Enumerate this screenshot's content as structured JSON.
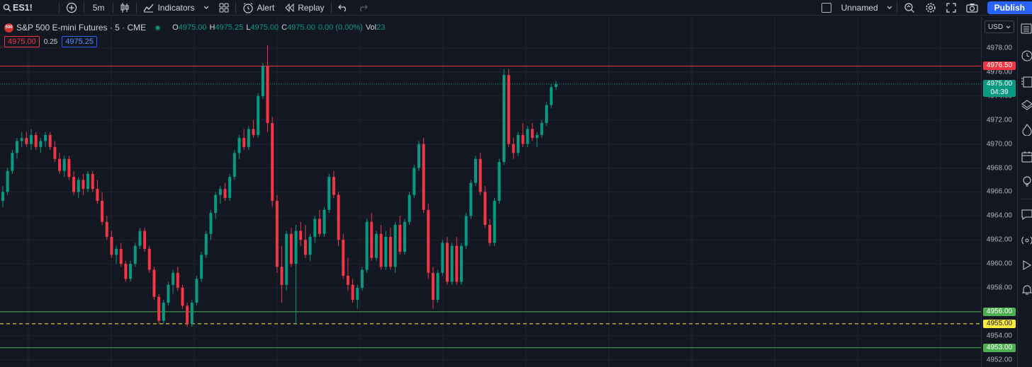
{
  "toolbar": {
    "symbol": "ES1!",
    "interval": "5m",
    "indicators_label": "Indicators",
    "alert_label": "Alert",
    "replay_label": "Replay",
    "layout_name": "Unnamed",
    "publish_label": "Publish"
  },
  "legend": {
    "badge": "500",
    "title": "S&P 500 E-mini Futures · 5 · CME",
    "open_key": "O",
    "open": "4975.00",
    "high_key": "H",
    "high": "4975.25",
    "low_key": "L",
    "low": "4975.00",
    "close_key": "C",
    "close": "4975.00",
    "change": "0.00 (0.00%)",
    "vol_key": "Vol",
    "vol": "23"
  },
  "quote": {
    "bid": "4975.00",
    "spread": "0.25",
    "ask": "4975.25"
  },
  "price_axis": {
    "currency": "USD",
    "ticks": [
      "4978.00",
      "4976.00",
      "4974.00",
      "4972.00",
      "4970.00",
      "4968.00",
      "4966.00",
      "4964.00",
      "4962.00",
      "4960.00",
      "4958.00",
      "4956.00",
      "4954.00",
      "4952.00"
    ],
    "labels": {
      "resistance": "4976.50",
      "last_price": "4975.00",
      "countdown": "04:39",
      "support_upper": "4956.00",
      "support_mid": "4955.00",
      "support_lower": "4953.00"
    }
  },
  "colors": {
    "up": "#089981",
    "down": "#f23645",
    "resistance": "#f23645",
    "support": "#4caf50",
    "midline": "#ffeb3b",
    "background": "#131722",
    "grid": "#1f2330"
  },
  "icons": {
    "toolbar": [
      "search-icon",
      "add-symbol-icon",
      "candles-icon",
      "indicators-icon",
      "templates-icon",
      "alert-icon",
      "replay-icon",
      "undo-icon",
      "redo-icon",
      "chevron-down-icon",
      "quick-search-icon",
      "settings-icon",
      "fullscreen-icon",
      "camera-icon"
    ],
    "sidebar": [
      "watchlist-icon",
      "alerts-clock-icon",
      "data-window-icon",
      "layers-icon",
      "hotlist-icon",
      "calendar-icon",
      "ideas-icon",
      "chat-icon",
      "streams-icon",
      "play-icon",
      "notifications-icon"
    ]
  },
  "chart_data": {
    "type": "candlestick",
    "ylim": [
      4951.5,
      4979.0
    ],
    "horizontal_lines": [
      {
        "price": 4976.5,
        "color": "#f23645",
        "style": "solid"
      },
      {
        "price": 4975.0,
        "color": "#089981",
        "style": "dotted"
      },
      {
        "price": 4956.0,
        "color": "#4caf50",
        "style": "solid"
      },
      {
        "price": 4955.0,
        "color": "#ffeb3b",
        "style": "dashed"
      },
      {
        "price": 4953.0,
        "color": "#4caf50",
        "style": "solid"
      }
    ],
    "candles": [
      [
        4965.25,
        4966.5,
        4964.75,
        4966.0
      ],
      [
        4966.0,
        4968.0,
        4965.75,
        4967.75
      ],
      [
        4967.75,
        4969.5,
        4967.5,
        4969.25
      ],
      [
        4969.25,
        4970.5,
        4968.75,
        4970.25
      ],
      [
        4970.25,
        4971.0,
        4969.75,
        4970.5
      ],
      [
        4970.5,
        4971.0,
        4969.75,
        4970.0
      ],
      [
        4970.0,
        4971.25,
        4969.5,
        4970.75
      ],
      [
        4970.75,
        4971.0,
        4969.5,
        4969.75
      ],
      [
        4969.75,
        4970.5,
        4969.25,
        4970.25
      ],
      [
        4970.25,
        4971.0,
        4969.75,
        4970.75
      ],
      [
        4970.75,
        4971.0,
        4969.5,
        4969.75
      ],
      [
        4969.75,
        4970.25,
        4968.5,
        4968.75
      ],
      [
        4968.75,
        4969.25,
        4967.5,
        4967.75
      ],
      [
        4967.75,
        4969.0,
        4967.25,
        4968.75
      ],
      [
        4968.75,
        4969.0,
        4967.0,
        4967.25
      ],
      [
        4967.25,
        4967.75,
        4965.75,
        4966.0
      ],
      [
        4966.0,
        4967.25,
        4965.5,
        4967.0
      ],
      [
        4967.0,
        4967.5,
        4965.75,
        4966.25
      ],
      [
        4966.25,
        4967.75,
        4966.0,
        4967.5
      ],
      [
        4967.5,
        4967.75,
        4966.0,
        4966.25
      ],
      [
        4966.25,
        4967.0,
        4965.0,
        4965.25
      ],
      [
        4965.25,
        4966.0,
        4963.25,
        4963.5
      ],
      [
        4963.5,
        4964.0,
        4962.0,
        4962.25
      ],
      [
        4962.25,
        4962.75,
        4960.5,
        4960.75
      ],
      [
        4960.75,
        4961.5,
        4960.0,
        4961.25
      ],
      [
        4961.25,
        4961.75,
        4959.75,
        4960.0
      ],
      [
        4960.0,
        4960.25,
        4958.5,
        4958.75
      ],
      [
        4958.75,
        4960.25,
        4958.5,
        4960.0
      ],
      [
        4960.0,
        4961.75,
        4959.75,
        4961.5
      ],
      [
        4961.5,
        4963.0,
        4961.25,
        4962.75
      ],
      [
        4962.75,
        4963.0,
        4961.0,
        4961.25
      ],
      [
        4961.25,
        4961.5,
        4959.25,
        4959.5
      ],
      [
        4959.5,
        4959.75,
        4957.0,
        4957.25
      ],
      [
        4957.25,
        4957.5,
        4955.0,
        4955.25
      ],
      [
        4955.25,
        4957.0,
        4955.0,
        4956.75
      ],
      [
        4956.75,
        4958.5,
        4956.5,
        4958.25
      ],
      [
        4958.25,
        4959.5,
        4957.5,
        4959.25
      ],
      [
        4959.25,
        4959.75,
        4957.75,
        4958.0
      ],
      [
        4958.0,
        4958.25,
        4956.25,
        4956.5
      ],
      [
        4956.5,
        4956.75,
        4954.75,
        4955.0
      ],
      [
        4955.0,
        4957.0,
        4954.75,
        4956.75
      ],
      [
        4956.75,
        4959.0,
        4956.5,
        4958.75
      ],
      [
        4958.75,
        4961.0,
        4958.5,
        4960.75
      ],
      [
        4960.75,
        4962.75,
        4960.5,
        4962.5
      ],
      [
        4962.5,
        4964.5,
        4962.0,
        4964.25
      ],
      [
        4964.25,
        4966.0,
        4963.75,
        4965.75
      ],
      [
        4965.75,
        4966.5,
        4965.0,
        4966.25
      ],
      [
        4966.25,
        4966.75,
        4965.25,
        4965.5
      ],
      [
        4965.5,
        4967.5,
        4965.25,
        4967.25
      ],
      [
        4967.25,
        4969.5,
        4967.0,
        4969.25
      ],
      [
        4969.25,
        4970.75,
        4968.75,
        4970.5
      ],
      [
        4970.5,
        4971.25,
        4969.5,
        4969.75
      ],
      [
        4969.75,
        4971.5,
        4969.5,
        4971.25
      ],
      [
        4971.25,
        4972.0,
        4970.5,
        4970.75
      ],
      [
        4970.75,
        4974.25,
        4970.5,
        4974.0
      ],
      [
        4974.0,
        4976.75,
        4973.75,
        4976.5
      ],
      [
        4976.5,
        4978.25,
        4971.0,
        4971.75
      ],
      [
        4971.75,
        4972.25,
        4964.75,
        4965.25
      ],
      [
        4965.25,
        4965.75,
        4959.25,
        4959.75
      ],
      [
        4959.75,
        4961.5,
        4956.75,
        4958.25
      ],
      [
        4958.25,
        4962.75,
        4957.75,
        4962.5
      ],
      [
        4962.5,
        4963.0,
        4959.75,
        4960.0
      ],
      [
        4960.0,
        4963.25,
        4955.0,
        4962.75
      ],
      [
        4962.75,
        4963.5,
        4961.5,
        4962.0
      ],
      [
        4962.0,
        4963.25,
        4960.5,
        4960.75
      ],
      [
        4960.75,
        4962.5,
        4960.25,
        4962.25
      ],
      [
        4962.25,
        4964.0,
        4961.75,
        4963.75
      ],
      [
        4963.75,
        4964.5,
        4962.25,
        4962.5
      ],
      [
        4962.5,
        4964.75,
        4962.25,
        4964.5
      ],
      [
        4964.5,
        4967.5,
        4964.25,
        4967.25
      ],
      [
        4967.25,
        4967.75,
        4965.5,
        4965.75
      ],
      [
        4965.75,
        4966.0,
        4961.5,
        4962.0
      ],
      [
        4962.0,
        4962.5,
        4958.75,
        4959.0
      ],
      [
        4959.0,
        4960.5,
        4957.75,
        4958.25
      ],
      [
        4958.25,
        4958.75,
        4956.75,
        4957.0
      ],
      [
        4957.0,
        4958.25,
        4956.25,
        4958.0
      ],
      [
        4958.0,
        4959.75,
        4957.75,
        4959.5
      ],
      [
        4959.5,
        4963.75,
        4959.25,
        4963.5
      ],
      [
        4963.5,
        4964.25,
        4960.25,
        4960.5
      ],
      [
        4960.5,
        4962.75,
        4960.25,
        4962.5
      ],
      [
        4962.5,
        4963.25,
        4959.5,
        4959.75
      ],
      [
        4959.75,
        4962.75,
        4959.5,
        4962.25
      ],
      [
        4962.25,
        4963.0,
        4959.5,
        4959.75
      ],
      [
        4959.75,
        4963.5,
        4959.25,
        4963.25
      ],
      [
        4963.25,
        4964.0,
        4960.75,
        4961.0
      ],
      [
        4961.0,
        4963.75,
        4960.75,
        4963.5
      ],
      [
        4963.5,
        4966.0,
        4963.25,
        4965.75
      ],
      [
        4965.75,
        4968.25,
        4965.5,
        4968.0
      ],
      [
        4968.0,
        4970.25,
        4967.75,
        4970.0
      ],
      [
        4970.0,
        4970.5,
        4964.25,
        4964.5
      ],
      [
        4964.5,
        4965.0,
        4958.75,
        4959.25
      ],
      [
        4959.25,
        4959.75,
        4956.25,
        4957.0
      ],
      [
        4957.0,
        4959.5,
        4956.75,
        4959.25
      ],
      [
        4959.25,
        4962.0,
        4959.0,
        4961.75
      ],
      [
        4961.75,
        4962.25,
        4958.25,
        4958.5
      ],
      [
        4958.5,
        4961.75,
        4958.25,
        4961.5
      ],
      [
        4961.5,
        4962.25,
        4958.25,
        4958.5
      ],
      [
        4958.5,
        4961.75,
        4958.25,
        4961.5
      ],
      [
        4961.5,
        4964.25,
        4961.25,
        4964.0
      ],
      [
        4964.0,
        4967.0,
        4963.75,
        4966.75
      ],
      [
        4966.75,
        4969.0,
        4966.5,
        4968.75
      ],
      [
        4968.75,
        4969.25,
        4965.75,
        4966.0
      ],
      [
        4966.0,
        4966.5,
        4963.0,
        4963.25
      ],
      [
        4963.25,
        4963.75,
        4961.5,
        4961.75
      ],
      [
        4961.75,
        4965.5,
        4961.5,
        4965.25
      ],
      [
        4965.25,
        4968.75,
        4965.0,
        4968.5
      ],
      [
        4968.5,
        4976.25,
        4968.25,
        4975.75
      ],
      [
        4975.75,
        4976.25,
        4969.75,
        4970.0
      ],
      [
        4970.0,
        4970.5,
        4968.75,
        4969.25
      ],
      [
        4969.25,
        4971.0,
        4969.0,
        4970.75
      ],
      [
        4970.75,
        4971.75,
        4969.75,
        4970.0
      ],
      [
        4970.0,
        4971.5,
        4969.75,
        4971.25
      ],
      [
        4971.25,
        4971.75,
        4970.25,
        4970.5
      ],
      [
        4970.5,
        4971.0,
        4969.75,
        4970.75
      ],
      [
        4970.75,
        4972.0,
        4970.5,
        4971.75
      ],
      [
        4971.75,
        4973.5,
        4971.5,
        4973.25
      ],
      [
        4973.25,
        4975.0,
        4973.0,
        4974.75
      ],
      [
        4974.75,
        4975.25,
        4974.5,
        4975.0
      ]
    ]
  }
}
